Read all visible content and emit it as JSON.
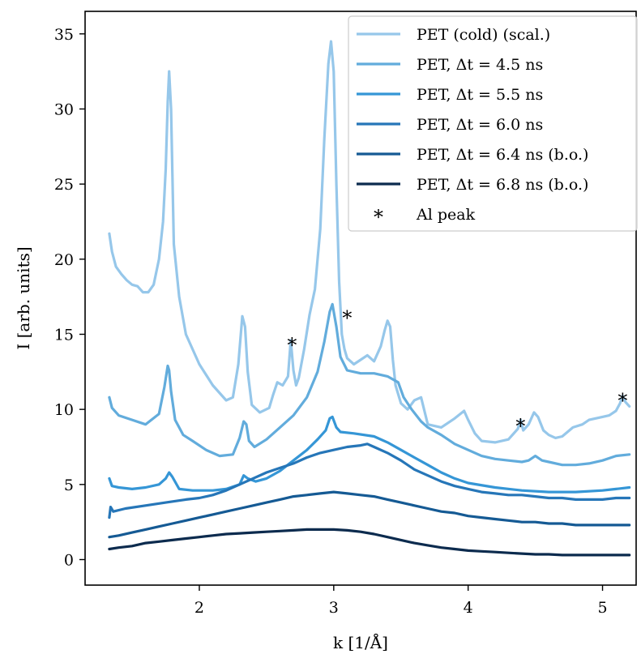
{
  "chart_data": {
    "type": "line",
    "xlabel": "k [1/Å]",
    "ylabel": "I [arb. units]",
    "xlim": [
      1.15,
      5.25
    ],
    "ylim": [
      -1.7,
      36.5
    ],
    "xticks": [
      2,
      3,
      4,
      5
    ],
    "yticks": [
      0,
      5,
      10,
      15,
      20,
      25,
      30,
      35
    ],
    "grid": false,
    "legend_position": "top-right",
    "series": [
      {
        "name": "PET (cold) (scal.)",
        "color": "#96c7ea",
        "x": [
          1.33,
          1.35,
          1.38,
          1.42,
          1.46,
          1.5,
          1.54,
          1.58,
          1.62,
          1.66,
          1.7,
          1.73,
          1.75,
          1.765,
          1.775,
          1.79,
          1.81,
          1.85,
          1.9,
          2.0,
          2.1,
          2.2,
          2.25,
          2.29,
          2.32,
          2.34,
          2.36,
          2.39,
          2.45,
          2.52,
          2.55,
          2.58,
          2.62,
          2.66,
          2.68,
          2.7,
          2.72,
          2.74,
          2.78,
          2.82,
          2.86,
          2.9,
          2.93,
          2.96,
          2.98,
          3.0,
          3.02,
          3.04,
          3.06,
          3.08,
          3.1,
          3.15,
          3.2,
          3.25,
          3.3,
          3.35,
          3.38,
          3.4,
          3.42,
          3.44,
          3.46,
          3.5,
          3.55,
          3.6,
          3.65,
          3.7,
          3.8,
          3.9,
          3.97,
          4.0,
          4.05,
          4.1,
          4.2,
          4.3,
          4.37,
          4.39,
          4.41,
          4.45,
          4.49,
          4.52,
          4.56,
          4.6,
          4.65,
          4.7,
          4.78,
          4.85,
          4.9,
          5.0,
          5.05,
          5.1,
          5.13,
          5.15,
          5.17,
          5.2
        ],
        "y": [
          21.7,
          20.5,
          19.5,
          19.0,
          18.6,
          18.3,
          18.2,
          17.8,
          17.8,
          18.3,
          20.0,
          22.5,
          26.0,
          30.5,
          32.5,
          30.0,
          21.0,
          17.5,
          15.0,
          13.0,
          11.6,
          10.6,
          10.8,
          13.0,
          16.2,
          15.5,
          12.5,
          10.3,
          9.8,
          10.1,
          11.0,
          11.8,
          11.6,
          12.2,
          14.6,
          12.6,
          11.6,
          12.1,
          14.0,
          16.3,
          18.0,
          22.0,
          28.0,
          33.0,
          34.5,
          32.5,
          25.0,
          18.5,
          15.0,
          14.0,
          13.4,
          13.0,
          13.3,
          13.6,
          13.2,
          14.2,
          15.3,
          15.9,
          15.5,
          13.3,
          11.6,
          10.4,
          10.0,
          10.6,
          10.8,
          9.0,
          8.8,
          9.4,
          9.9,
          9.3,
          8.4,
          7.9,
          7.8,
          8.0,
          8.7,
          9.3,
          8.6,
          9.0,
          9.8,
          9.5,
          8.6,
          8.3,
          8.1,
          8.2,
          8.8,
          9.0,
          9.3,
          9.5,
          9.6,
          9.9,
          10.4,
          10.9,
          10.5,
          10.2
        ]
      },
      {
        "name": "PET, Δt = 4.5 ns",
        "color": "#62acdc",
        "x": [
          1.33,
          1.35,
          1.4,
          1.5,
          1.6,
          1.7,
          1.74,
          1.765,
          1.775,
          1.79,
          1.82,
          1.88,
          1.95,
          2.05,
          2.15,
          2.25,
          2.3,
          2.33,
          2.35,
          2.37,
          2.41,
          2.5,
          2.6,
          2.7,
          2.8,
          2.88,
          2.93,
          2.97,
          2.99,
          3.02,
          3.05,
          3.1,
          3.2,
          3.3,
          3.4,
          3.48,
          3.52,
          3.58,
          3.65,
          3.7,
          3.8,
          3.9,
          4.0,
          4.1,
          4.2,
          4.3,
          4.4,
          4.45,
          4.5,
          4.55,
          4.6,
          4.7,
          4.8,
          4.9,
          5.0,
          5.1,
          5.2
        ],
        "y": [
          10.8,
          10.1,
          9.6,
          9.3,
          9.0,
          9.7,
          11.5,
          12.9,
          12.6,
          11.2,
          9.3,
          8.3,
          7.9,
          7.3,
          6.9,
          7.0,
          8.1,
          9.2,
          9.0,
          7.9,
          7.5,
          8.0,
          8.8,
          9.6,
          10.8,
          12.5,
          14.5,
          16.5,
          17.0,
          15.5,
          13.5,
          12.6,
          12.4,
          12.4,
          12.2,
          11.8,
          10.8,
          10.0,
          9.2,
          8.8,
          8.3,
          7.7,
          7.3,
          6.9,
          6.7,
          6.6,
          6.5,
          6.6,
          6.9,
          6.6,
          6.5,
          6.3,
          6.3,
          6.4,
          6.6,
          6.9,
          7.0
        ]
      },
      {
        "name": "PET, Δt = 5.5 ns",
        "color": "#3596d6",
        "x": [
          1.33,
          1.35,
          1.4,
          1.5,
          1.6,
          1.7,
          1.75,
          1.775,
          1.8,
          1.85,
          1.95,
          2.1,
          2.2,
          2.3,
          2.33,
          2.36,
          2.42,
          2.5,
          2.6,
          2.7,
          2.8,
          2.88,
          2.94,
          2.97,
          2.99,
          3.02,
          3.05,
          3.15,
          3.3,
          3.4,
          3.5,
          3.6,
          3.7,
          3.8,
          3.9,
          4.0,
          4.2,
          4.4,
          4.6,
          4.8,
          5.0,
          5.1,
          5.2
        ],
        "y": [
          5.4,
          4.9,
          4.8,
          4.7,
          4.8,
          5.0,
          5.4,
          5.8,
          5.5,
          4.7,
          4.6,
          4.6,
          4.7,
          5.0,
          5.6,
          5.4,
          5.2,
          5.4,
          5.9,
          6.6,
          7.3,
          8.0,
          8.6,
          9.4,
          9.5,
          8.8,
          8.5,
          8.4,
          8.2,
          7.8,
          7.3,
          6.8,
          6.3,
          5.8,
          5.4,
          5.1,
          4.8,
          4.6,
          4.5,
          4.5,
          4.6,
          4.7,
          4.8
        ]
      },
      {
        "name": "PET, Δt = 6.0 ns",
        "color": "#2676b8",
        "x": [
          1.33,
          1.34,
          1.36,
          1.45,
          1.6,
          1.75,
          1.9,
          2.0,
          2.1,
          2.2,
          2.3,
          2.4,
          2.5,
          2.6,
          2.7,
          2.8,
          2.9,
          3.0,
          3.1,
          3.2,
          3.25,
          3.3,
          3.4,
          3.5,
          3.6,
          3.7,
          3.8,
          3.9,
          4.0,
          4.1,
          4.2,
          4.3,
          4.4,
          4.5,
          4.6,
          4.7,
          4.8,
          4.9,
          5.0,
          5.1,
          5.2
        ],
        "y": [
          2.8,
          3.5,
          3.2,
          3.4,
          3.6,
          3.8,
          4.0,
          4.1,
          4.3,
          4.6,
          5.0,
          5.4,
          5.8,
          6.1,
          6.4,
          6.8,
          7.1,
          7.3,
          7.5,
          7.6,
          7.7,
          7.5,
          7.1,
          6.6,
          6.0,
          5.6,
          5.2,
          4.9,
          4.7,
          4.5,
          4.4,
          4.3,
          4.3,
          4.2,
          4.1,
          4.1,
          4.0,
          4.0,
          4.0,
          4.1,
          4.1
        ]
      },
      {
        "name": "PET, Δt = 6.4 ns (b.o.)",
        "color": "#155a94",
        "x": [
          1.33,
          1.4,
          1.5,
          1.6,
          1.7,
          1.8,
          1.9,
          2.0,
          2.1,
          2.2,
          2.3,
          2.4,
          2.5,
          2.6,
          2.7,
          2.8,
          2.9,
          3.0,
          3.1,
          3.2,
          3.3,
          3.4,
          3.5,
          3.6,
          3.7,
          3.8,
          3.9,
          4.0,
          4.1,
          4.2,
          4.3,
          4.4,
          4.5,
          4.6,
          4.7,
          4.8,
          4.9,
          5.0,
          5.1,
          5.2
        ],
        "y": [
          1.5,
          1.6,
          1.8,
          2.0,
          2.2,
          2.4,
          2.6,
          2.8,
          3.0,
          3.2,
          3.4,
          3.6,
          3.8,
          4.0,
          4.2,
          4.3,
          4.4,
          4.5,
          4.4,
          4.3,
          4.2,
          4.0,
          3.8,
          3.6,
          3.4,
          3.2,
          3.1,
          2.9,
          2.8,
          2.7,
          2.6,
          2.5,
          2.5,
          2.4,
          2.4,
          2.3,
          2.3,
          2.3,
          2.3,
          2.3
        ]
      },
      {
        "name": "PET, Δt = 6.8 ns (b.o.)",
        "color": "#0c2b4e",
        "x": [
          1.33,
          1.4,
          1.5,
          1.6,
          1.7,
          1.8,
          1.9,
          2.0,
          2.1,
          2.2,
          2.3,
          2.4,
          2.5,
          2.6,
          2.7,
          2.8,
          2.9,
          3.0,
          3.1,
          3.2,
          3.3,
          3.4,
          3.5,
          3.6,
          3.7,
          3.8,
          3.9,
          4.0,
          4.1,
          4.2,
          4.3,
          4.4,
          4.5,
          4.6,
          4.7,
          4.8,
          4.9,
          5.0,
          5.1,
          5.2
        ],
        "y": [
          0.7,
          0.8,
          0.9,
          1.1,
          1.2,
          1.3,
          1.4,
          1.5,
          1.6,
          1.7,
          1.75,
          1.8,
          1.85,
          1.9,
          1.95,
          2.0,
          2.0,
          2.0,
          1.95,
          1.85,
          1.7,
          1.5,
          1.3,
          1.1,
          0.95,
          0.8,
          0.7,
          0.6,
          0.55,
          0.5,
          0.45,
          0.4,
          0.35,
          0.35,
          0.3,
          0.3,
          0.3,
          0.3,
          0.3,
          0.3
        ]
      }
    ],
    "al_peak_marker": {
      "label": "Al peak",
      "symbol": "*"
    },
    "annotations": [
      {
        "text": "*",
        "x": 2.69,
        "y": 14.6
      },
      {
        "text": "*",
        "x": 3.1,
        "y": 16.4
      },
      {
        "text": "*",
        "x": 4.39,
        "y": 9.2
      },
      {
        "text": "*",
        "x": 5.15,
        "y": 10.9
      }
    ]
  }
}
